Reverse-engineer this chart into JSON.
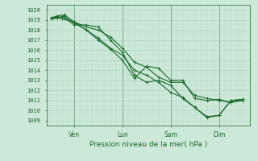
{
  "title": "Pression niveau de la mer( hPa )",
  "ylabel_values": [
    1009,
    1010,
    1011,
    1012,
    1013,
    1014,
    1015,
    1016,
    1017,
    1018,
    1019,
    1020
  ],
  "ylim": [
    1008.5,
    1020.5
  ],
  "xlim": [
    -0.15,
    8.3
  ],
  "bg_color": "#cce8d8",
  "grid_color": "#aacbb8",
  "line_color": "#1a6b2a",
  "day_labels": [
    "Ven",
    "Lun",
    "Sam",
    "Dim"
  ],
  "day_positions": [
    1,
    3,
    5,
    7
  ],
  "line1_x": [
    0.05,
    0.25,
    0.5,
    1.0,
    1.5,
    2.0,
    2.5,
    3.0,
    3.5,
    4.0,
    4.5,
    5.0,
    5.5,
    6.0,
    6.5,
    7.0,
    7.5,
    8.0
  ],
  "line1_y": [
    1019.2,
    1019.3,
    1019.1,
    1018.8,
    1018.0,
    1017.0,
    1016.1,
    1015.0,
    1013.2,
    1014.4,
    1014.2,
    1013.0,
    1013.0,
    1011.2,
    1011.0,
    1011.1,
    1010.8,
    1011.0
  ],
  "line2_x": [
    0.05,
    0.3,
    0.6,
    1.0,
    1.5,
    2.0,
    2.5,
    3.0,
    3.5,
    4.0,
    4.5,
    5.0,
    5.5,
    6.0,
    6.5,
    7.0,
    7.5,
    8.0
  ],
  "line2_y": [
    1019.2,
    1019.4,
    1019.5,
    1018.8,
    1018.3,
    1018.0,
    1017.3,
    1016.2,
    1014.8,
    1014.3,
    1013.3,
    1012.8,
    1012.8,
    1011.5,
    1011.2,
    1011.0,
    1010.8,
    1011.1
  ],
  "line3_x": [
    0.05,
    0.3,
    0.55,
    1.0,
    1.5,
    2.0,
    2.5,
    3.0,
    3.5,
    4.0,
    4.5,
    5.0,
    5.5,
    6.0,
    6.5,
    7.0,
    7.5,
    8.0
  ],
  "line3_y": [
    1019.1,
    1019.2,
    1019.4,
    1018.7,
    1018.0,
    1017.2,
    1016.2,
    1015.5,
    1014.0,
    1013.5,
    1012.8,
    1011.8,
    1011.3,
    1010.3,
    1009.4,
    1009.5,
    1011.0,
    1011.1
  ],
  "line4_x": [
    0.05,
    0.3,
    0.55,
    1.0,
    1.5,
    2.0,
    2.5,
    3.0,
    3.5,
    4.0,
    4.5,
    5.0,
    5.5,
    6.0,
    6.5,
    7.0,
    7.5,
    8.0
  ],
  "line4_y": [
    1019.1,
    1019.2,
    1019.3,
    1018.5,
    1018.5,
    1018.3,
    1017.0,
    1015.8,
    1013.5,
    1012.8,
    1013.0,
    1012.5,
    1011.2,
    1010.3,
    1009.3,
    1009.5,
    1011.0,
    1011.1
  ],
  "figsize": [
    3.2,
    2.0
  ],
  "dpi": 100,
  "fontsize_ytick": 5.0,
  "fontsize_xtick": 5.5,
  "fontsize_xlabel": 6.5,
  "linewidth": 0.8,
  "markersize": 1.8
}
